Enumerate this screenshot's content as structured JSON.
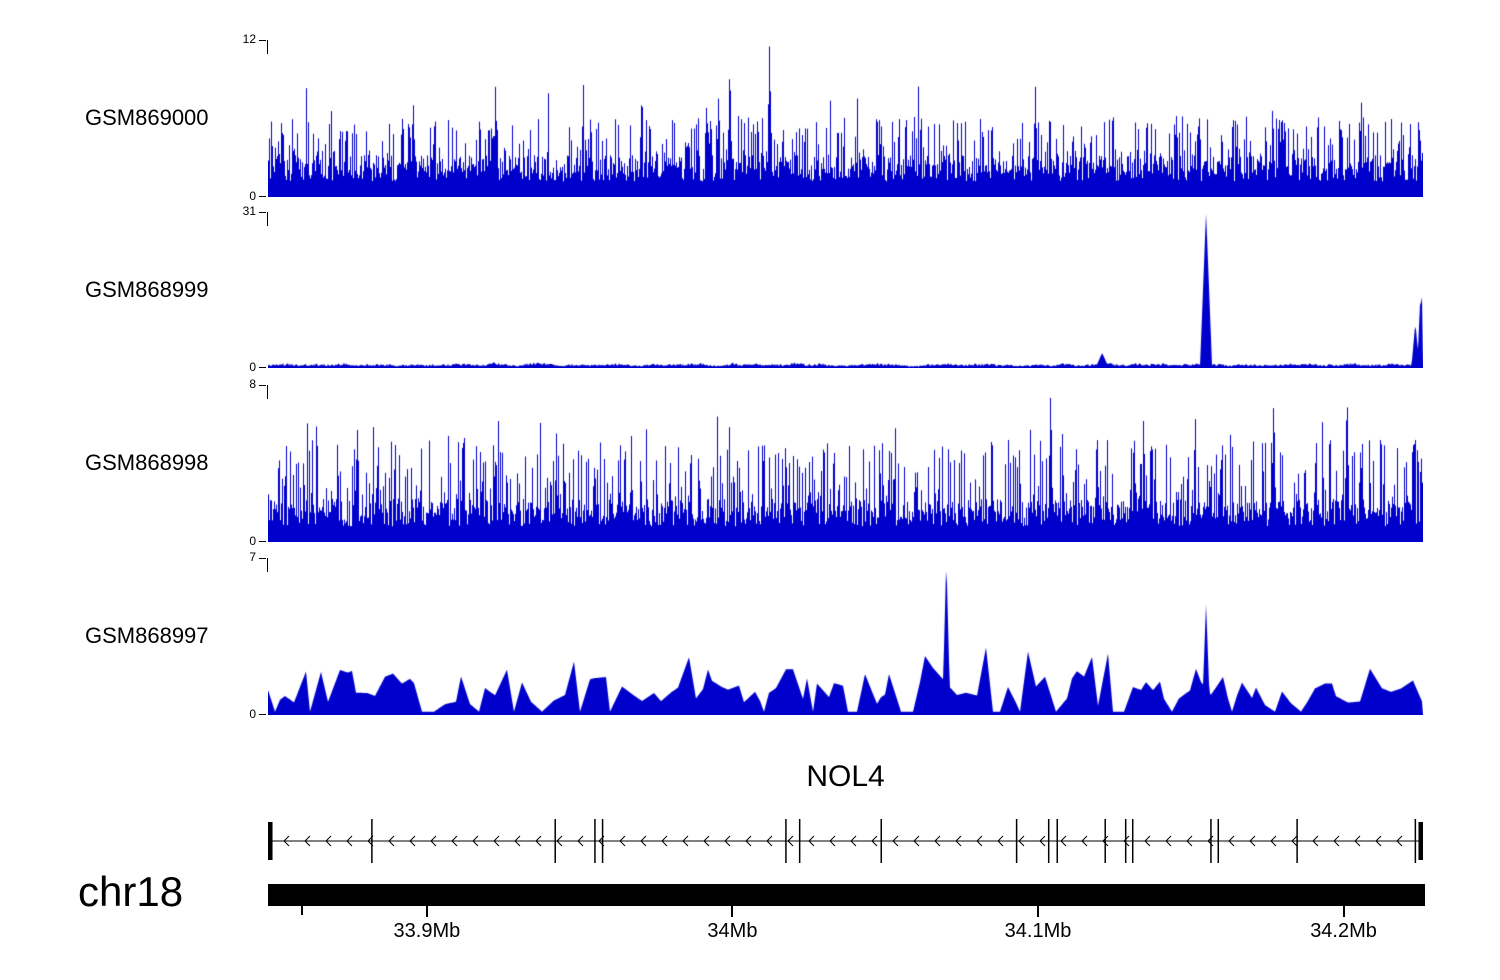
{
  "figure": {
    "background": "#ffffff",
    "signal_color": "#0000cc"
  },
  "chart_data": {
    "type": "area",
    "description": "Genome browser read-coverage tracks for four GEO samples over chr18 with NOL4 gene model and chromosome coordinate axis",
    "x_range_mb": [
      33.848,
      34.226
    ],
    "x_axis": {
      "unit": "Mb",
      "ticks": [
        {
          "mb": 33.9,
          "label": "33.9Mb"
        },
        {
          "mb": 34.0,
          "label": "34Mb"
        },
        {
          "mb": 34.1,
          "label": "34.1Mb"
        },
        {
          "mb": 34.2,
          "label": "34.2Mb"
        }
      ],
      "minor_ticks_mb": [
        33.859
      ]
    },
    "tracks": [
      {
        "name": "GSM869000",
        "ylim": [
          0,
          12
        ],
        "style": "spikes",
        "baseline": [
          1.2,
          3.2
        ],
        "mid": {
          "p": 0.28,
          "lo": 3.2,
          "hi": 6.2
        },
        "high": {
          "p": 0.013,
          "lo": 6.5,
          "hi": 8.8
        },
        "peaks": [
          {
            "mb": 34.012,
            "value": 12,
            "width_mb": 0.0008
          },
          {
            "mb": 33.999,
            "value": 10.5,
            "width_mb": 0.0008
          },
          {
            "mb": 34.099,
            "value": 8.6,
            "width_mb": 0.0008
          }
        ]
      },
      {
        "name": "GSM868999",
        "ylim": [
          0,
          31
        ],
        "style": "area",
        "base": 0.15,
        "amp": 1.3,
        "peaks": [
          {
            "mb": 34.155,
            "value": 31,
            "width_mb": 0.0018
          },
          {
            "mb": 34.121,
            "value": 3,
            "width_mb": 0.002
          },
          {
            "mb": 34.2235,
            "value": 9,
            "width_mb": 0.0012
          },
          {
            "mb": 34.2252,
            "value": 15,
            "width_mb": 0.001
          },
          {
            "mb": 34.226,
            "value": 20,
            "width_mb": 0.001
          }
        ]
      },
      {
        "name": "GSM868998",
        "ylim": [
          0,
          8
        ],
        "style": "spikes",
        "baseline": [
          0.8,
          2.2
        ],
        "mid": {
          "p": 0.3,
          "lo": 2.2,
          "hi": 5.2
        },
        "high": {
          "p": 0.025,
          "lo": 5.3,
          "hi": 6.6
        },
        "peaks": [
          {
            "mb": 34.104,
            "value": 8,
            "width_mb": 0.0008
          },
          {
            "mb": 34.177,
            "value": 7.6,
            "width_mb": 0.0008
          },
          {
            "mb": 34.201,
            "value": 8,
            "width_mb": 0.0008
          }
        ]
      },
      {
        "name": "GSM868997",
        "ylim": [
          0,
          7
        ],
        "style": "bumps",
        "peaks": [
          {
            "mb": 34.07,
            "value": 7,
            "width_mb": 0.0012
          },
          {
            "mb": 34.155,
            "value": 5,
            "width_mb": 0.0012
          }
        ]
      }
    ],
    "gene": {
      "name": "NOL4",
      "strand": "-",
      "exons_mb": [
        33.882,
        33.942,
        33.955,
        33.9575,
        34.0175,
        34.022,
        34.0487,
        34.093,
        34.1035,
        34.1063,
        34.122,
        34.1287,
        34.131,
        34.1566,
        34.159,
        34.1848,
        34.2235
      ],
      "end_blocks_mb": [
        33.8485,
        34.2255
      ]
    },
    "chromosome": {
      "name": "chr18"
    }
  }
}
